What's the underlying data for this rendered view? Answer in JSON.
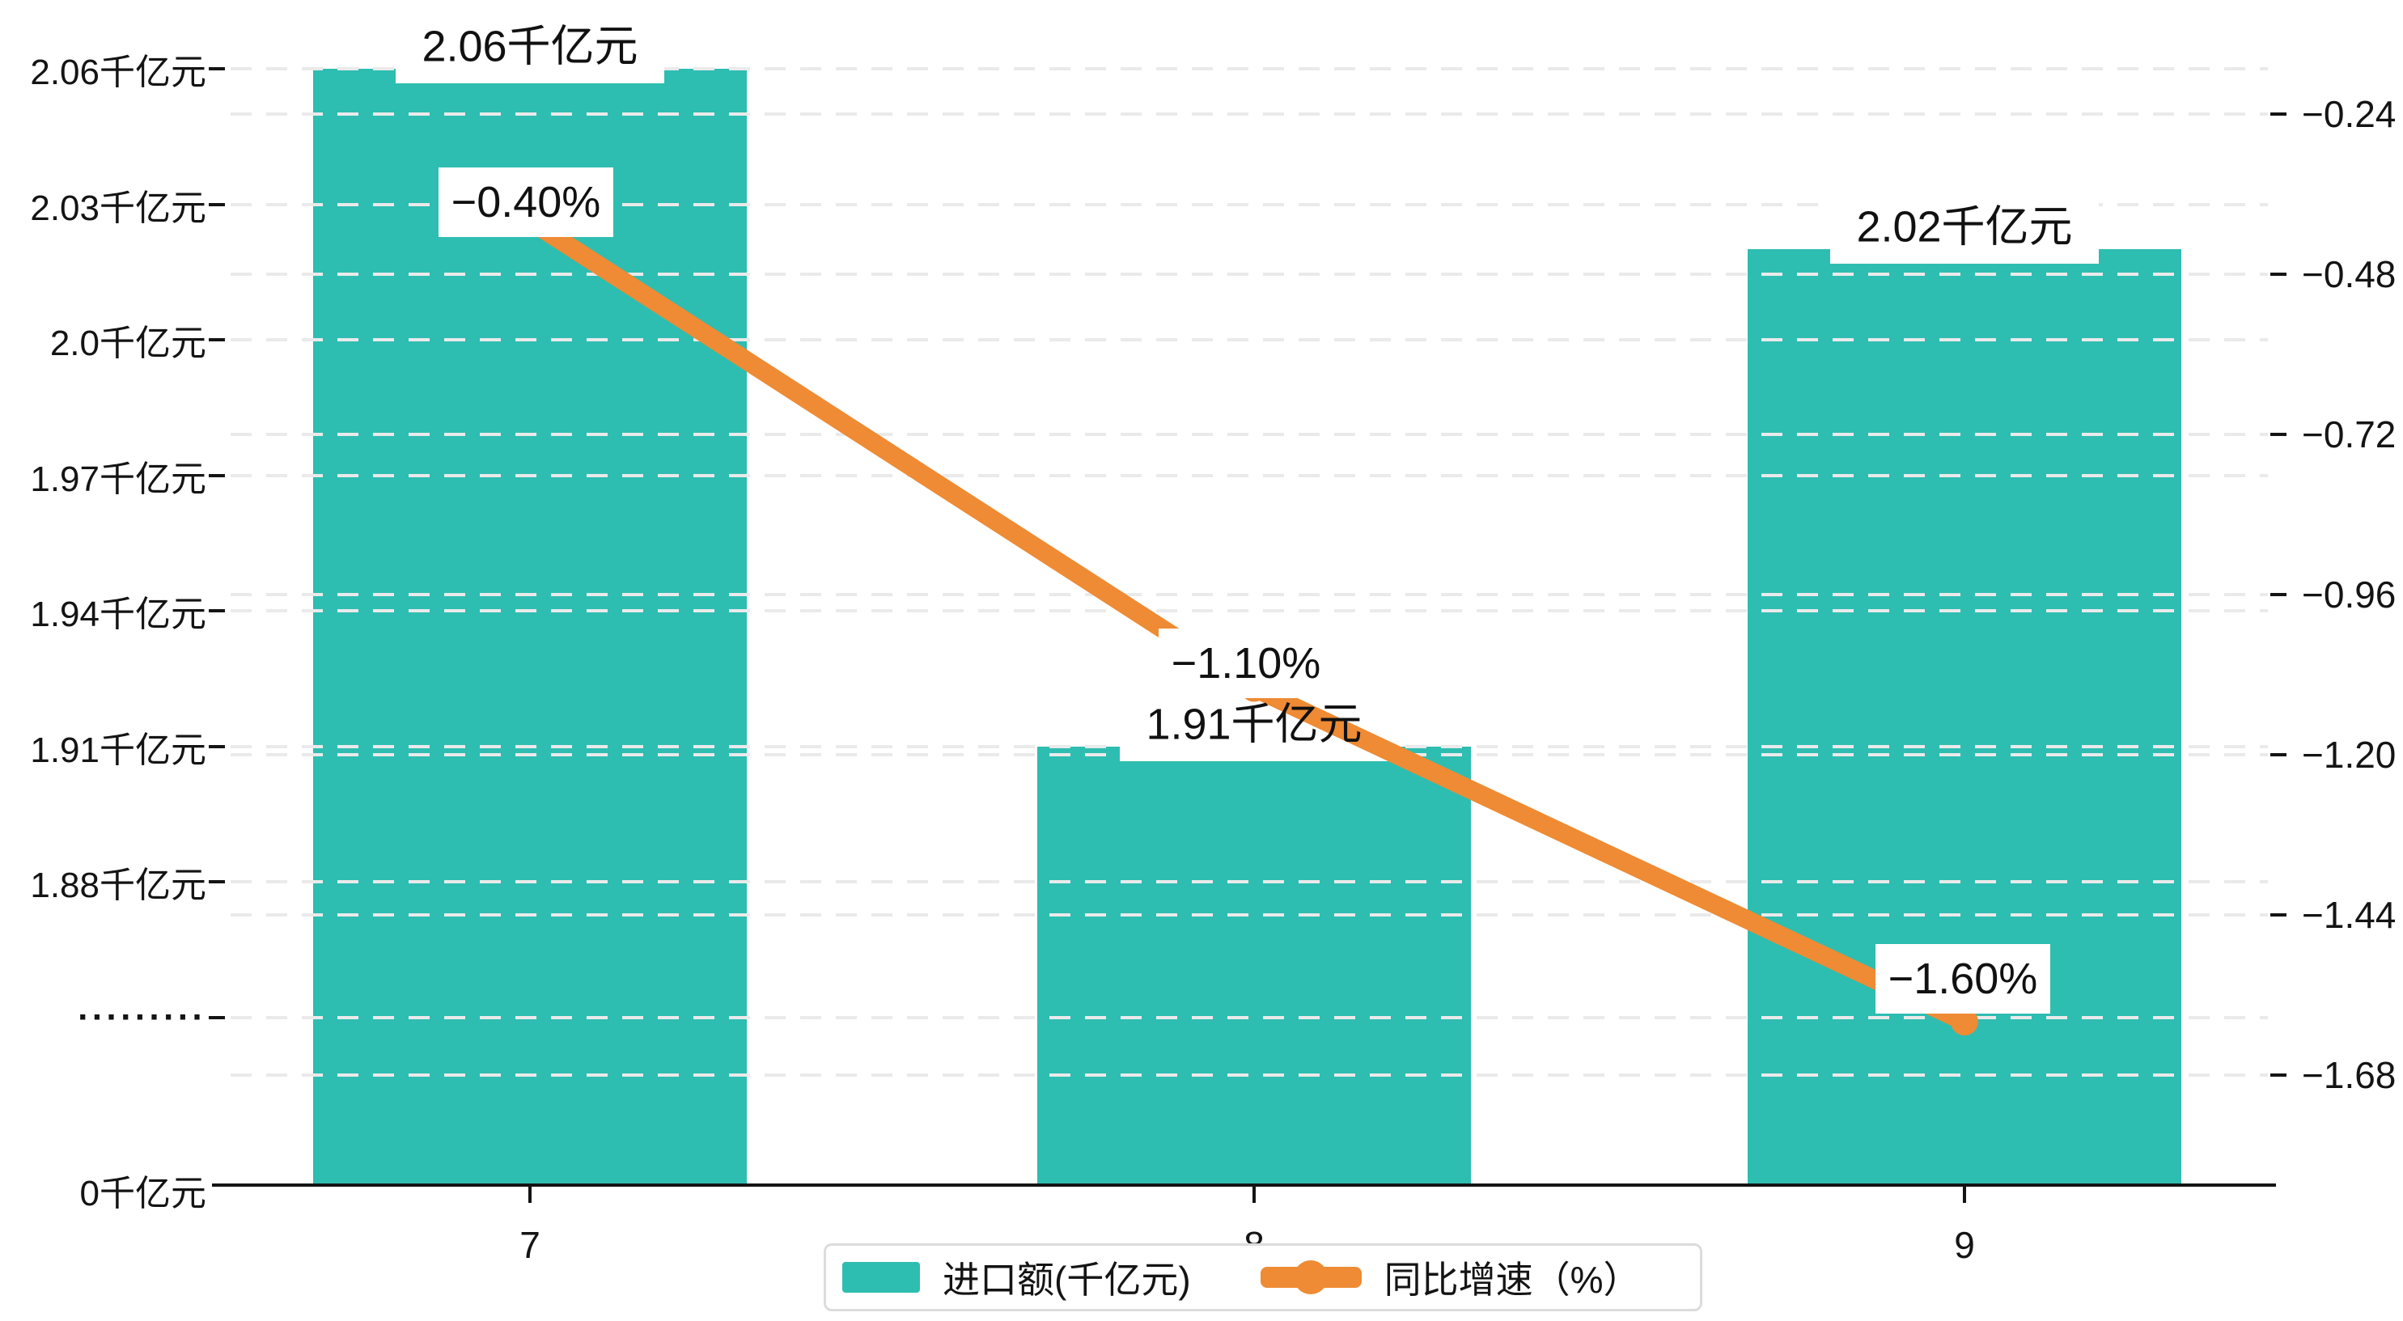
{
  "chart_data": {
    "type": "combo-bar-line",
    "categories": [
      "7",
      "8",
      "9"
    ],
    "series": [
      {
        "name": "进口额(千亿元)",
        "type": "bar",
        "unit": "千亿元",
        "values": [
          2.06,
          1.91,
          2.02
        ],
        "data_labels": [
          "2.06千亿元",
          "1.91千亿元",
          "2.02千亿元"
        ],
        "color": "#2ebdb1"
      },
      {
        "name": "同比增速（%）",
        "type": "line",
        "unit": "%",
        "values": [
          -0.4,
          -1.1,
          -1.6
        ],
        "data_labels": [
          "−0.40%",
          "−1.10%",
          "−1.60%"
        ],
        "color": "#ee8b34"
      }
    ],
    "left_axis": {
      "unit": "千亿元",
      "tick_labels": [
        "2.06千亿元",
        "2.03千亿元",
        "2.0千亿元",
        "1.97千亿元",
        "1.94千亿元",
        "1.91千亿元",
        "1.88千亿元"
      ],
      "tick_values": [
        2.06,
        2.03,
        2.0,
        1.97,
        1.94,
        1.91,
        1.88
      ],
      "break_label": "·········",
      "zero_label": "0千亿元",
      "broken_axis": true
    },
    "right_axis": {
      "tick_labels": [
        "−0.24",
        "−0.48",
        "−0.72",
        "−0.96",
        "−1.20",
        "−1.44",
        "−1.68"
      ],
      "tick_values": [
        -0.24,
        -0.48,
        -0.72,
        -0.96,
        -1.2,
        -1.44,
        -1.68
      ]
    },
    "legend": [
      {
        "label": "进口额(千亿元)",
        "marker": "square",
        "color": "#2ebdb1"
      },
      {
        "label": "同比增速（%）",
        "marker": "line-dot",
        "color": "#ee8b34"
      }
    ],
    "grid": true,
    "gridline_color": "#eaeaea",
    "background": "#ffffff",
    "text_color": "#141414",
    "legend_position": "bottom-center"
  }
}
